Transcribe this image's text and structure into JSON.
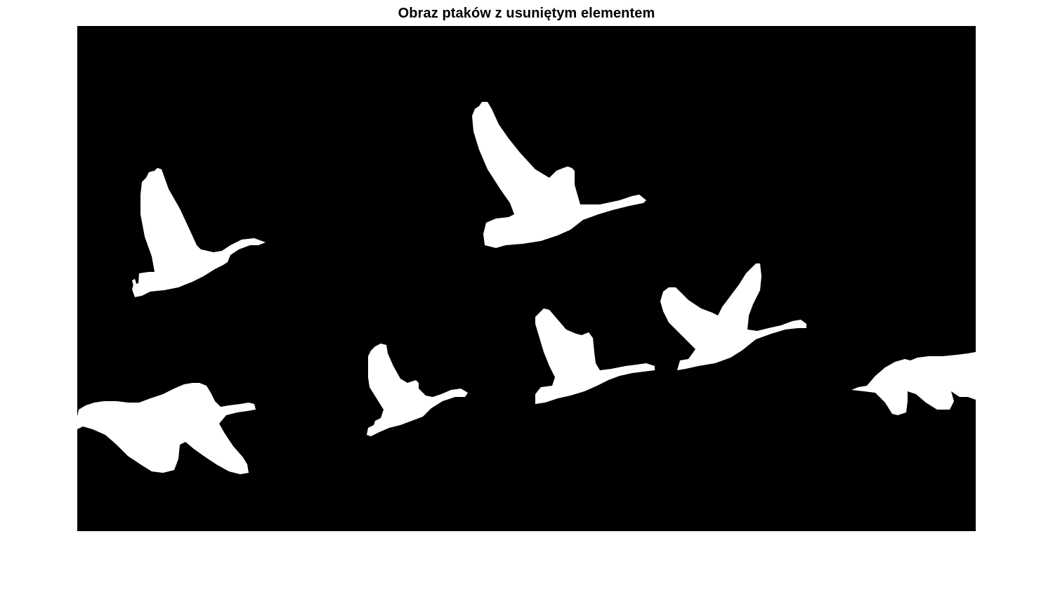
{
  "figure": {
    "title": "Obraz ptaków z usuniętym elementem",
    "colors": {
      "background": "#000000",
      "foreground": "#ffffff",
      "page": "#ffffff"
    },
    "content": "binary image of bird silhouettes"
  }
}
